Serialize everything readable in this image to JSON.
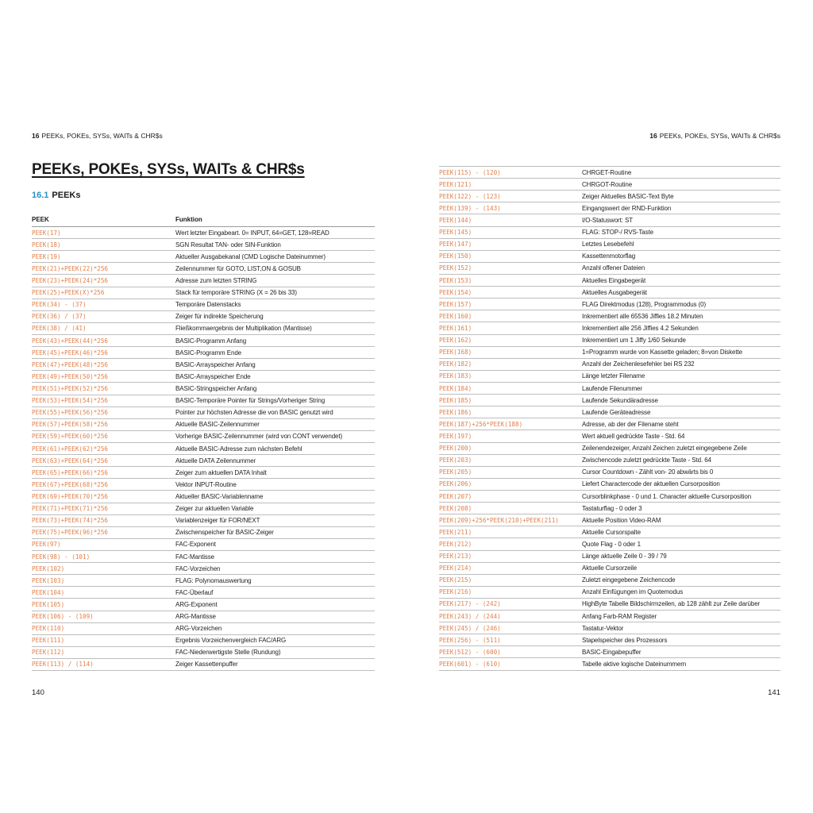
{
  "running_header": {
    "chapter_num": "16",
    "chapter_title": "PEEKs, POKEs, SYSs, WAITs & CHR$s"
  },
  "title": "PEEKs, POKEs, SYSs, WAITs & CHR$s",
  "section": {
    "number": "16.1",
    "title": "PEEKs"
  },
  "table_headers": {
    "peek": "PEEK",
    "funktion": "Funktion"
  },
  "colors": {
    "code": "#e0804a",
    "section_number": "#2a8fc4"
  },
  "left_rows": [
    [
      "PEEK(17)",
      "Wert letzter Eingabeart. 0= INPUT, 64=GET, 128=READ"
    ],
    [
      "PEEK(18)",
      "SGN Resultat TAN- oder SIN-Funktion"
    ],
    [
      "PEEK(19)",
      "Aktueller Ausgabekanal (CMD Logische Dateinummer)"
    ],
    [
      "PEEK(21)+PEEK(22)*256",
      "Zeilennummer für GOTO, LIST,ON & GOSUB"
    ],
    [
      "PEEK(23)+PEEK(24)*256",
      "Adresse zum letzten STRING"
    ],
    [
      "PEEK(25)+PEEK(X)*256",
      "Stack für temporäre STRING (X = 26 bis 33)"
    ],
    [
      "PEEK(34) - (37)",
      "Temporäre Datenstacks"
    ],
    [
      "PEEK(36) / (37)",
      "Zeiger für indirekte Speicherung"
    ],
    [
      "PEEK(38) / (41)",
      "Fließkommaergebnis der Multiplikation (Mantisse)"
    ],
    [
      "PEEK(43)+PEEK(44)*256",
      "BASIC-Programm Anfang"
    ],
    [
      "PEEK(45)+PEEK(46)*256",
      "BASIC-Programm Ende"
    ],
    [
      "PEEK(47)+PEEK(48)*256",
      "BASIC-Arrayspeicher Anfang"
    ],
    [
      "PEEK(49)+PEEK(50)*256",
      "BASIC-Arrayspeicher Ende"
    ],
    [
      "PEEK(51)+PEEK(52)*256",
      "BASIC-Stringspeicher Anfang"
    ],
    [
      "PEEK(53)+PEEK(54)*256",
      "BASIC-Temporäre Pointer für Strings/Vorheriger String"
    ],
    [
      "PEEK(55)+PEEK(56)*256",
      "Pointer zur höchsten Adresse die von BASIC genutzt wird"
    ],
    [
      "PEEK(57)+PEEK(58)*256",
      "Aktuelle BASIC-Zeilennummer"
    ],
    [
      "PEEK(59)+PEEK(60)*256",
      "Vorherige BASIC-Zeilennummer (wird von CONT verwendet)"
    ],
    [
      "PEEK(61)+PEEK(62)*256",
      "Aktuelle BASIC-Adresse zum nächsten Befehl"
    ],
    [
      "PEEK(63)+PEEK(64)*256",
      "Aktuelle DATA Zeilennummer"
    ],
    [
      "PEEK(65)+PEEK(66)*256",
      "Zeiger zum aktuellen DATA Inhalt"
    ],
    [
      "PEEK(67)+PEEK(68)*256",
      "Vektor INPUT-Routine"
    ],
    [
      "PEEK(69)+PEEK(70)*256",
      "Aktueller BASIC-Variablenname"
    ],
    [
      "PEEK(71)+PEEK(71)*256",
      "Zeiger zur aktuellen Variable"
    ],
    [
      "PEEK(73)+PEEK(74)*256",
      "Variablenzeiger für FOR/NEXT"
    ],
    [
      "PEEK(75)+PEEK(96)*256",
      "Zwischenspeicher für BASIC-Zeiger"
    ],
    [
      "PEEK(97)",
      "FAC-Exponent"
    ],
    [
      "PEEK(98) - (101)",
      "FAC-Mantisse"
    ],
    [
      "PEEK(102)",
      "FAC-Vorzeichen"
    ],
    [
      "PEEK(103)",
      "FLAG: Polynomauswertung"
    ],
    [
      "PEEK(104)",
      "FAC-Überlauf"
    ],
    [
      "PEEK(105)",
      "ARG-Exponent"
    ],
    [
      "PEEK(106) - (109)",
      "ARG-Mantisse"
    ],
    [
      "PEEK(110)",
      "ARG-Vorzeichen"
    ],
    [
      "PEEK(111)",
      "Ergebnis Vorzeichenvergleich FAC/ARG"
    ],
    [
      "PEEK(112)",
      "FAC-Niederwertigste Stelle (Rundung)"
    ],
    [
      "PEEK(113) / (114)",
      "Zeiger Kassettenpuffer"
    ]
  ],
  "right_rows": [
    [
      "PEEK(115) - (120)",
      "CHRGET-Routine"
    ],
    [
      "PEEK(121)",
      "CHRGOT-Routine"
    ],
    [
      "PEEK(122) - (123)",
      "Zeiger Aktuelles BASIC-Text Byte"
    ],
    [
      "PEEK(139) - (143)",
      "Eingangswert der RND-Funktion"
    ],
    [
      "PEEK(144)",
      "I/O-Statuswort: ST"
    ],
    [
      "PEEK(145)",
      "FLAG: STOP-/ RVS-Taste"
    ],
    [
      "PEEK(147)",
      "Letztes Lesebefehl"
    ],
    [
      "PEEK(150)",
      "Kassettenmotorflag"
    ],
    [
      "PEEK(152)",
      "Anzahl offener Dateien"
    ],
    [
      "PEEK(153)",
      "Aktuelles Eingabegerät"
    ],
    [
      "PEEK(154)",
      "Aktuelles Ausgabegerät"
    ],
    [
      "PEEK(157)",
      "FLAG Direktmodus (128), Programmodus (0)"
    ],
    [
      "PEEK(160)",
      "Inkrementiert alle 65536 Jiffies 18.2 Minuten"
    ],
    [
      "PEEK(161)",
      "Inkrementiert alle 256 Jiffies 4.2 Sekunden"
    ],
    [
      "PEEK(162)",
      "Inkrementiert um 1 Jiffy 1/60 Sekunde"
    ],
    [
      "PEEK(168)",
      "1=Programm wurde von Kassette geladen; 8=von Diskette"
    ],
    [
      "PEEK(182)",
      "Anzahl der Zeichenlesefehler bei RS 232"
    ],
    [
      "PEEK(183)",
      "Länge letzter Filename"
    ],
    [
      "PEEK(184)",
      "Laufende Filenummer"
    ],
    [
      "PEEK(185)",
      "Laufende Sekundäradresse"
    ],
    [
      "PEEK(186)",
      "Laufende Geräteadresse"
    ],
    [
      "PEEK(187)+256*PEEK(188)",
      "Adresse, ab der der Filename steht"
    ],
    [
      "PEEK(197)",
      "Wert aktuell gedrückte Taste - Std. 64"
    ],
    [
      "PEEK(200)",
      "Zeilenendezeiger, Anzahl Zeichen zuletzt eingegebene Zeile"
    ],
    [
      "PEEK(203)",
      "Zwischencode zuletzt gedrückte Taste - Std. 64"
    ],
    [
      "PEEK(205)",
      "Cursor Countdown - Zählt von- 20 abwärts bis 0"
    ],
    [
      "PEEK(206)",
      "Liefert Charactercode der aktuellen Cursorposition"
    ],
    [
      "PEEK(207)",
      "Cursorblinkphase - 0 und 1. Character aktuelle Cursorposition"
    ],
    [
      "PEEK(208)",
      "Tastaturflag - 0 oder 3"
    ],
    [
      "PEEK(209)+256*PEEK(210)+PEEK(211)",
      "Aktuelle Position Video-RAM"
    ],
    [
      "PEEK(211)",
      "Aktuelle Cursorspalte"
    ],
    [
      "PEEK(212)",
      "Quote Flag - 0 oder 1"
    ],
    [
      "PEEK(213)",
      "Länge aktuelle Zeile 0 - 39 / 79"
    ],
    [
      "PEEK(214)",
      "Aktuelle Cursorzeile"
    ],
    [
      "PEEK(215)",
      "Zuletzt eingegebene Zeichencode"
    ],
    [
      "PEEK(216)",
      "Anzahl Einfügungen im Quotemodus"
    ],
    [
      "PEEK(217) - (242)",
      "HighByte Tabelle Bildschirmzeilen, ab 128 zählt zur Zeile darüber"
    ],
    [
      "PEEK(243) / (244)",
      "Anfang Farb-RAM Register"
    ],
    [
      "PEEK(245) / (246)",
      "Tastatur-Vektor"
    ],
    [
      "PEEK(256) - (511)",
      "Stapelspeicher des Prozessors"
    ],
    [
      "PEEK(512) - (600)",
      "BASIC-Eingabepuffer"
    ],
    [
      "PEEK(601) - (610)",
      "Tabelle aktive logische Dateinummern"
    ]
  ],
  "page_numbers": {
    "left": "140",
    "right": "141"
  }
}
